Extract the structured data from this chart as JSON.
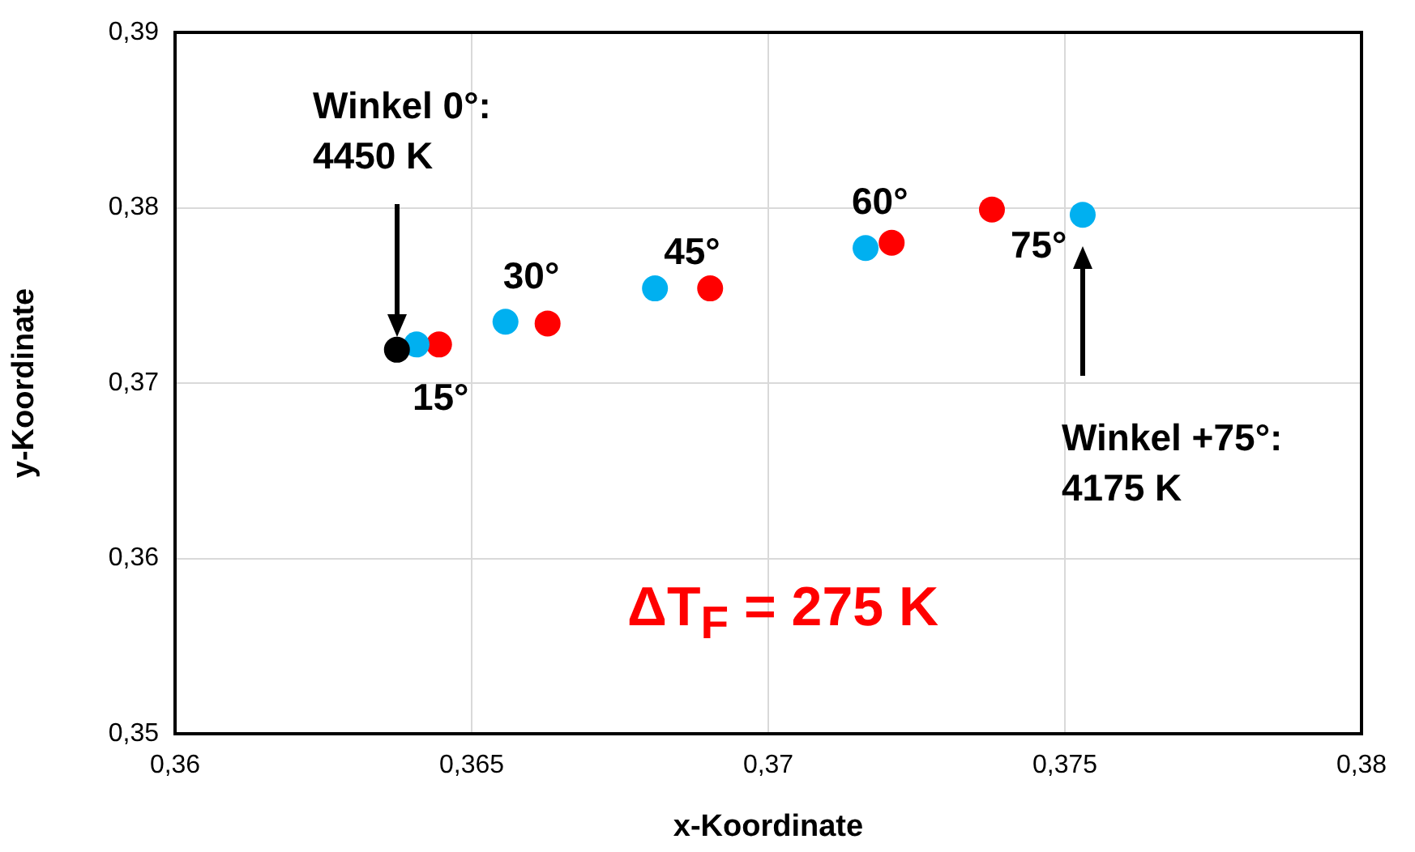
{
  "chart_data": {
    "type": "scatter",
    "xlabel": "x-Koordinate",
    "ylabel": "y-Koordinate",
    "series": [
      {
        "color": "#000000",
        "x": [
          0.36374
        ],
        "values": [
          0.3719
        ]
      },
      {
        "color": "#00b0f0",
        "x": [
          0.36407,
          0.36557,
          0.36809,
          0.37164,
          0.3753
        ],
        "values": [
          0.3722,
          0.3735,
          0.3754,
          0.3777,
          0.3796
        ]
      },
      {
        "color": "#ff0000",
        "x": [
          0.36445,
          0.36628,
          0.36902,
          0.37208,
          0.37377
        ],
        "values": [
          0.3722,
          0.3734,
          0.3754,
          0.378,
          0.3799
        ]
      }
    ],
    "xlim": [
      0.36,
      0.38
    ],
    "xticks": [
      {
        "value": 0.36,
        "label": "0,36"
      },
      {
        "value": 0.365,
        "label": "0,365"
      },
      {
        "value": 0.37,
        "label": "0,37"
      },
      {
        "value": 0.375,
        "label": "0,375"
      },
      {
        "value": 0.38,
        "label": "0,38"
      }
    ],
    "ylim": [
      0.35,
      0.39
    ],
    "yticks": [
      {
        "value": 0.35,
        "label": "0,35"
      },
      {
        "value": 0.36,
        "label": "0,36"
      },
      {
        "value": 0.37,
        "label": "0,37"
      },
      {
        "value": 0.38,
        "label": "0,38"
      },
      {
        "value": 0.39,
        "label": "0,39"
      }
    ],
    "grid": true,
    "legend": false,
    "marker": "circle",
    "annotations": [
      "Winkel 0°:\n4450 K",
      "Winkel +75°:\n4175 K",
      {
        "text": "15°",
        "x": 0.36407,
        "y": 0.3722
      },
      {
        "text": "30°",
        "x": 0.36557,
        "y": 0.3735
      },
      {
        "text": "45°",
        "x": 0.36809,
        "y": 0.3754
      },
      {
        "text": "60°",
        "x": 0.37164,
        "y": 0.3777
      },
      {
        "text": "75°",
        "x": 0.37377,
        "y": 0.3799
      },
      "ΔT$_{F}$ = 275 K"
    ]
  }
}
